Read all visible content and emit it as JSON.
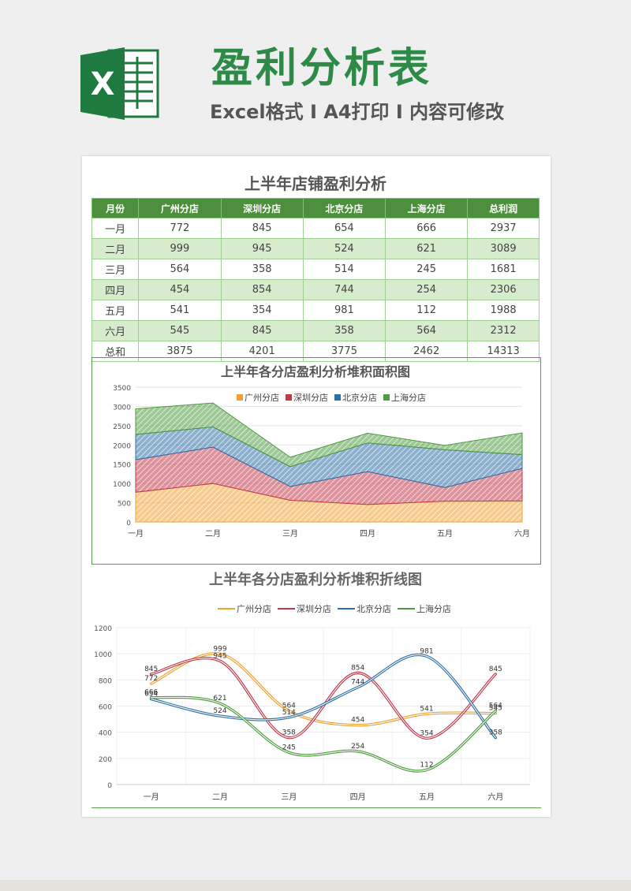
{
  "header": {
    "title": "盈利分析表",
    "subtitle": "Excel格式 I A4打印 I 内容可修改",
    "logo_letter": "X"
  },
  "table": {
    "title": "上半年店铺盈利分析",
    "columns": [
      "月份",
      "广州分店",
      "深圳分店",
      "北京分店",
      "上海分店",
      "总利润"
    ],
    "rows": [
      [
        "一月",
        "772",
        "845",
        "654",
        "666",
        "2937"
      ],
      [
        "二月",
        "999",
        "945",
        "524",
        "621",
        "3089"
      ],
      [
        "三月",
        "564",
        "358",
        "514",
        "245",
        "1681"
      ],
      [
        "四月",
        "454",
        "854",
        "744",
        "254",
        "2306"
      ],
      [
        "五月",
        "541",
        "354",
        "981",
        "112",
        "1988"
      ],
      [
        "六月",
        "545",
        "845",
        "358",
        "564",
        "2312"
      ],
      [
        "总和",
        "3875",
        "4201",
        "3775",
        "2462",
        "14313"
      ]
    ]
  },
  "chart_data": [
    {
      "type": "area",
      "stacked": true,
      "title": "上半年各分店盈利分析堆积面积图",
      "categories": [
        "一月",
        "二月",
        "三月",
        "四月",
        "五月",
        "六月"
      ],
      "ylim": [
        0,
        3500
      ],
      "yticks": [
        "0",
        "500",
        "1000",
        "1500",
        "2000",
        "2500",
        "3000",
        "3500"
      ],
      "legend_position": "top",
      "series": [
        {
          "name": "广州分店",
          "values": [
            772,
            999,
            564,
            454,
            541,
            545
          ],
          "color": "#f0a030"
        },
        {
          "name": "深圳分店",
          "values": [
            845,
            945,
            358,
            854,
            354,
            845
          ],
          "color": "#c0394b"
        },
        {
          "name": "北京分店",
          "values": [
            654,
            524,
            514,
            744,
            981,
            358
          ],
          "color": "#2f6fa8"
        },
        {
          "name": "上海分店",
          "values": [
            666,
            621,
            245,
            254,
            112,
            564
          ],
          "color": "#4e9a3e"
        }
      ]
    },
    {
      "type": "line",
      "smooth": true,
      "title": "上半年各分店盈利分析堆积折线图",
      "categories": [
        "一月",
        "二月",
        "三月",
        "四月",
        "五月",
        "六月"
      ],
      "ylim": [
        0,
        1200
      ],
      "yticks": [
        "0",
        "200",
        "400",
        "600",
        "800",
        "1000",
        "1200"
      ],
      "legend_position": "top",
      "data_labels": true,
      "series": [
        {
          "name": "广州分店",
          "values": [
            772,
            999,
            564,
            454,
            541,
            545
          ],
          "color": "#f0a030"
        },
        {
          "name": "深圳分店",
          "values": [
            845,
            945,
            358,
            854,
            354,
            845
          ],
          "color": "#c0394b"
        },
        {
          "name": "北京分店",
          "values": [
            654,
            524,
            514,
            744,
            981,
            358
          ],
          "color": "#2f6fa8"
        },
        {
          "name": "上海分店",
          "values": [
            666,
            621,
            245,
            254,
            112,
            564
          ],
          "color": "#4e9a3e"
        }
      ]
    }
  ]
}
